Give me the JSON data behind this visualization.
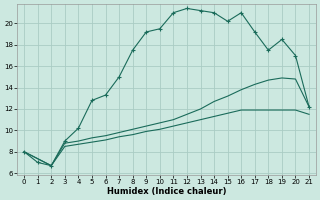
{
  "xlabel": "Humidex (Indice chaleur)",
  "bg_color": "#cce8e0",
  "grid_color": "#aaccC4",
  "line_color": "#1a6b5a",
  "xlim": [
    -0.5,
    21.5
  ],
  "ylim": [
    5.8,
    21.8
  ],
  "xticks": [
    0,
    1,
    2,
    3,
    4,
    5,
    6,
    7,
    8,
    9,
    10,
    11,
    12,
    13,
    14,
    15,
    16,
    17,
    18,
    19,
    20,
    21
  ],
  "yticks": [
    6,
    8,
    10,
    12,
    14,
    16,
    18,
    20
  ],
  "line1_x": [
    0,
    1,
    2,
    3,
    4,
    5,
    6,
    7,
    8,
    9,
    10,
    11,
    12,
    13,
    14,
    15,
    16,
    17,
    18,
    19,
    20,
    21
  ],
  "line1_y": [
    8.0,
    7.0,
    6.7,
    9.0,
    10.2,
    12.8,
    13.3,
    15.0,
    17.5,
    19.2,
    19.5,
    21.0,
    21.4,
    21.2,
    21.0,
    20.2,
    21.0,
    19.2,
    17.5,
    18.5,
    17.0,
    12.2
  ],
  "line2_x": [
    0,
    2,
    3,
    4,
    5,
    6,
    7,
    8,
    9,
    10,
    11,
    12,
    13,
    14,
    15,
    16,
    17,
    18,
    19,
    20,
    21
  ],
  "line2_y": [
    8.0,
    6.7,
    8.8,
    9.0,
    9.3,
    9.5,
    9.8,
    10.1,
    10.4,
    10.7,
    11.0,
    11.5,
    12.0,
    12.7,
    13.2,
    13.8,
    14.3,
    14.7,
    14.9,
    14.8,
    12.2
  ],
  "line3_x": [
    0,
    2,
    3,
    4,
    5,
    6,
    7,
    8,
    9,
    10,
    11,
    12,
    13,
    14,
    15,
    16,
    17,
    18,
    19,
    20,
    21
  ],
  "line3_y": [
    8.0,
    6.7,
    8.5,
    8.7,
    8.9,
    9.1,
    9.4,
    9.6,
    9.9,
    10.1,
    10.4,
    10.7,
    11.0,
    11.3,
    11.6,
    11.9,
    11.9,
    11.9,
    11.9,
    11.9,
    11.5
  ]
}
